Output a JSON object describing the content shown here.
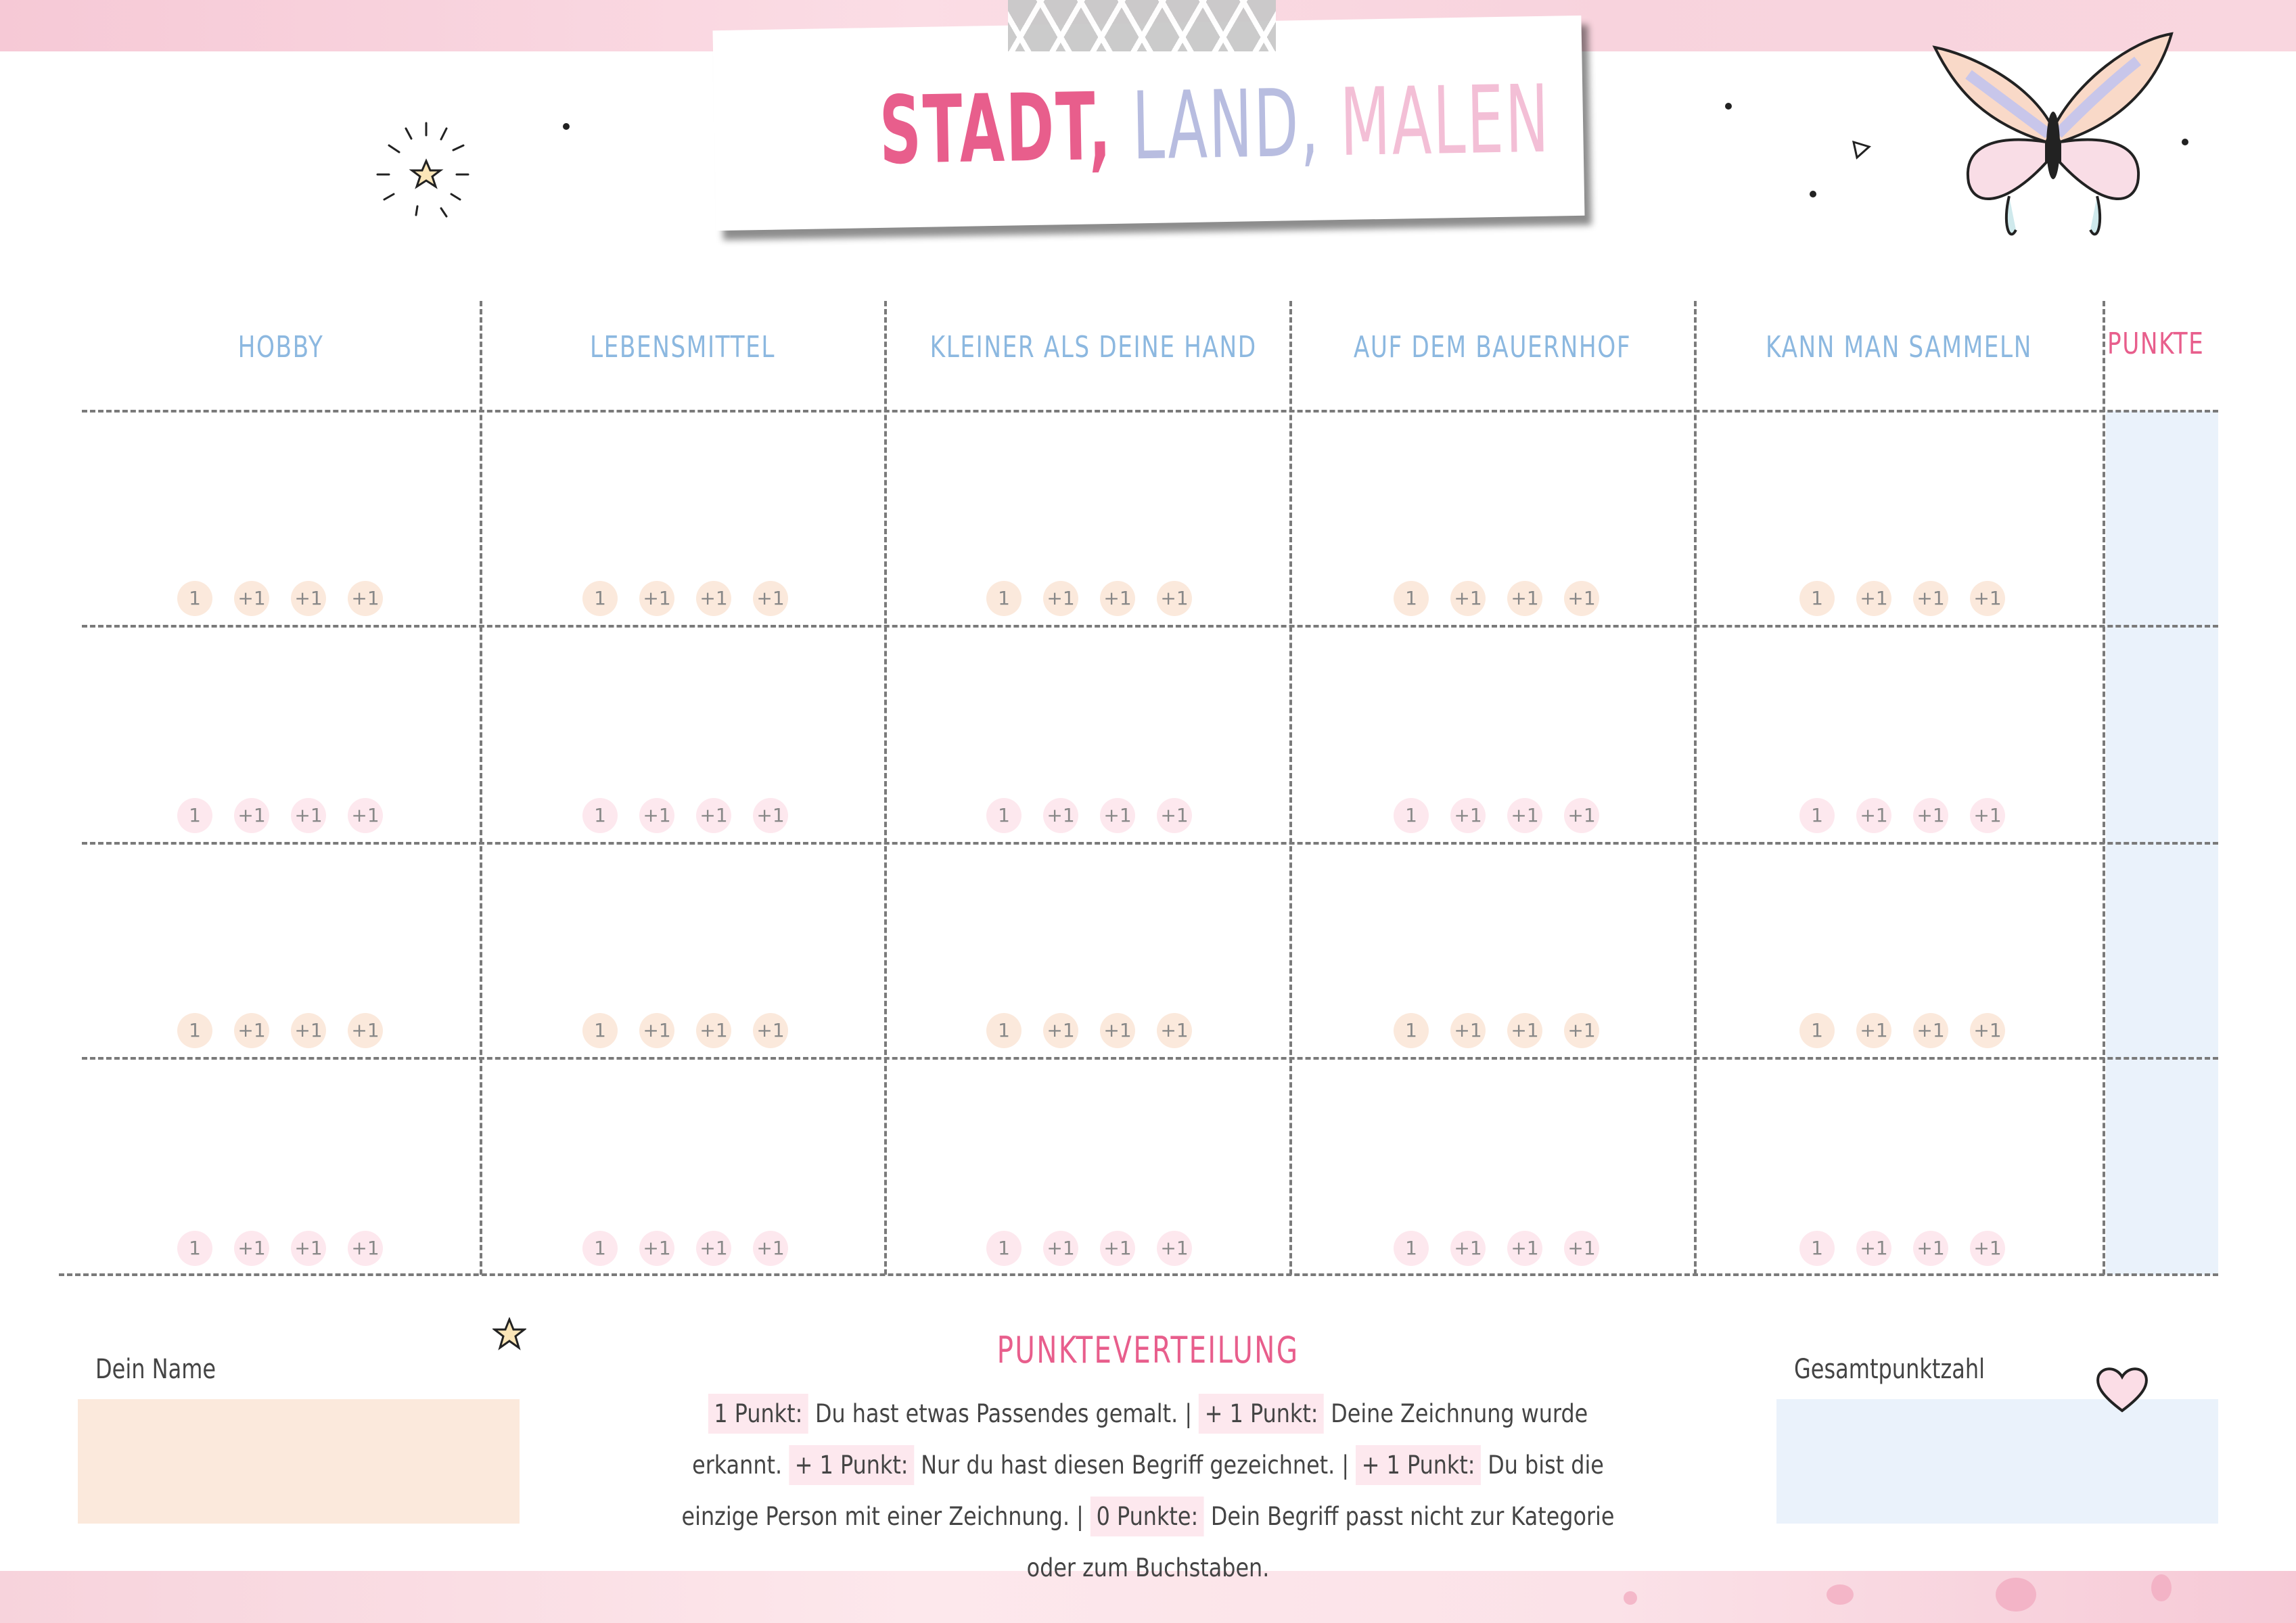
{
  "title": {
    "part1": "STADT,",
    "part2": "LAND,",
    "part3": "MALEN"
  },
  "colors": {
    "title1": "#e85e8c",
    "title2": "#b8bde0",
    "title3": "#f3bfd6",
    "header": "#8cb8e0",
    "punkte_header": "#e85e8c",
    "name_box": "#fbe9dc",
    "total_box": "#eaf2fb",
    "pill_peach": "#fbe9dc",
    "pill_pink": "#fde8ee"
  },
  "columns": [
    "HOBBY",
    "LEBENSMITTEL",
    "KLEINER ALS DEINE HAND",
    "AUF DEM BAUERNHOF",
    "KANN MAN SAMMELN"
  ],
  "punkte_header": "PUNKTE",
  "score_pills": [
    "1",
    "+1",
    "+1",
    "+1"
  ],
  "row_pill_colors": [
    "#fbe9dc",
    "#fde8ee",
    "#fbe9dc",
    "#fde8ee"
  ],
  "name_label": "Dein Name",
  "total_label": "Gesamtpunktzahl",
  "rules_title": "PUNKTEVERTEILUNG",
  "rules": [
    {
      "label": "1 Punkt:",
      "text": "Du hast etwas Passendes gemalt. |"
    },
    {
      "label": "+ 1 Punkt:",
      "text": "Deine Zeichnung wurde erkannt."
    },
    {
      "label": "+ 1 Punkt:",
      "text": "Nur du hast diesen Begriff gezeichnet. |"
    },
    {
      "label": "+ 1 Punkt:",
      "text": "Du bist die einzige Person mit einer Zeichnung. |"
    },
    {
      "label": "0 Punkte:",
      "text": "Dein Begriff passt nicht zur Kategorie oder zum Buchstaben."
    }
  ],
  "icons": [
    "sparkle-star-icon",
    "butterfly-icon",
    "star-icon",
    "heart-icon",
    "triangle-icon"
  ]
}
